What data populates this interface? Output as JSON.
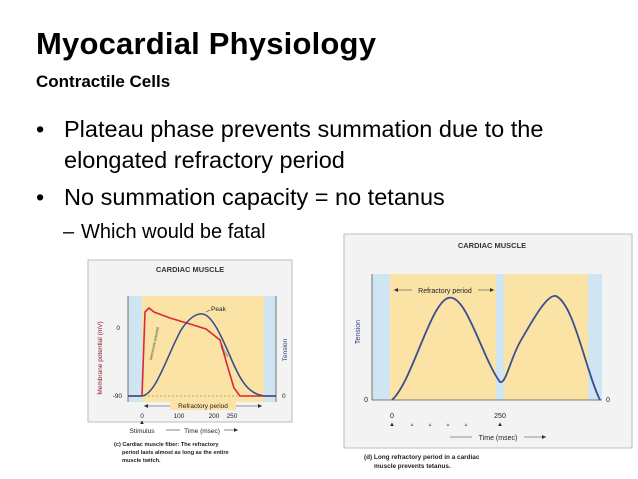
{
  "slide": {
    "title": "Myocardial Physiology",
    "subtitle": "Contractile Cells",
    "bullets": [
      {
        "marker": "•",
        "text": "Plateau phase prevents summation due to the elongated refractory period"
      },
      {
        "marker": "•",
        "text": "No summation capacity = no tetanus"
      }
    ],
    "sub_bullet": {
      "marker": "–",
      "text": "Which would be fatal"
    }
  },
  "colors": {
    "refractory_fill": "#fbe3a6",
    "blue_band": "#cfe5f1",
    "membrane_curve": "#d8283c",
    "tension_curve": "#3b4f8f",
    "panel_border": "#bdbdbd"
  },
  "figure_left": {
    "header": "CARDIAC MUSCLE",
    "peak_label": "Peak",
    "y_left_label": "Membrane potential (mV)",
    "y_right_label": "Tension",
    "y_ticks": [
      "0",
      "-90"
    ],
    "right_zero": "0",
    "refractory_label": "Refractory period",
    "x_ticks": [
      "0",
      "100",
      "200",
      "250"
    ],
    "stimulus_label": "Stimulus",
    "x_axis_label": "Time (msec)",
    "curve_label_membrane": "Membrane potential",
    "curve_label_tension": "Tension",
    "caption_lines": [
      "(c) Cardiac muscle fiber: The refractory",
      "period lasts almost as long as the entire",
      "muscle twitch."
    ]
  },
  "figure_right": {
    "header": "CARDIAC MUSCLE",
    "refractory_label": "Refractory period",
    "y_label": "Tension",
    "zero_left": "0",
    "zero_right": "0",
    "x_ticks": [
      "0",
      "250"
    ],
    "x_axis_label": "Time (msec)",
    "caption_lines": [
      "(d) Long refractory period in a cardiac",
      "muscle prevents tetanus."
    ]
  }
}
